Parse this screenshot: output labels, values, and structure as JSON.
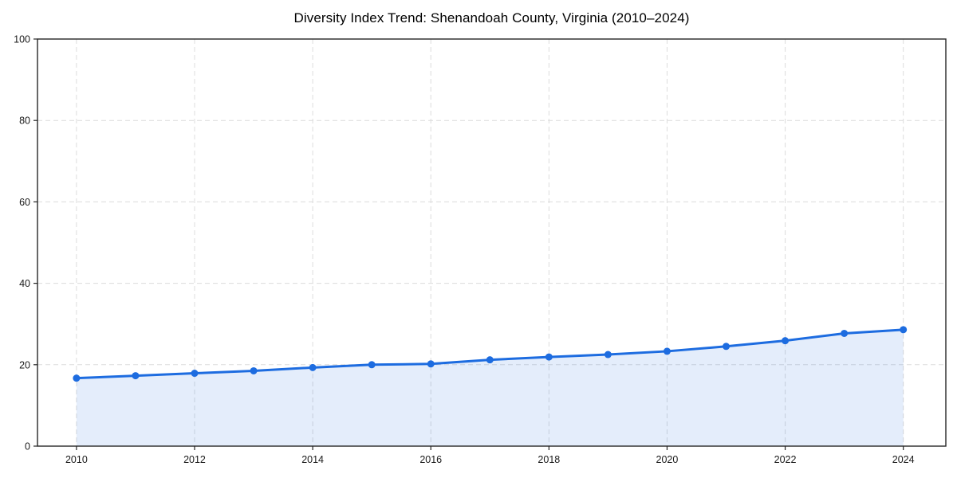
{
  "chart_data": {
    "type": "area",
    "title": "Diversity Index Trend: Shenandoah County, Virginia (2010–2024)",
    "xlabel": "",
    "ylabel": "",
    "x": [
      2010,
      2011,
      2012,
      2013,
      2014,
      2015,
      2016,
      2017,
      2018,
      2019,
      2020,
      2021,
      2022,
      2023,
      2024
    ],
    "series": [
      {
        "name": "Diversity Index",
        "values": [
          16.7,
          17.3,
          17.9,
          18.5,
          19.3,
          20.0,
          20.2,
          21.2,
          21.9,
          22.5,
          23.3,
          24.5,
          25.9,
          27.7,
          28.6
        ]
      }
    ],
    "ylim": [
      0,
      100
    ],
    "xlim": [
      2009.34,
      2024.72
    ],
    "yticks": [
      0,
      20,
      40,
      60,
      80,
      100
    ],
    "xticks": [
      2010,
      2012,
      2014,
      2016,
      2018,
      2020,
      2022,
      2024
    ],
    "grid": true,
    "grid_style": "dashed",
    "legend_position": "none",
    "marker": "circle"
  },
  "colors": {
    "line": "#1d6ce0",
    "marker": "#1d6ce0",
    "fill": "#1d6ce0",
    "fill_opacity": 0.12,
    "grid": "#dcdcdc",
    "spine": "#262626",
    "tick_text": "#1a1a1a",
    "title_text": "#000000",
    "background": "#ffffff"
  }
}
